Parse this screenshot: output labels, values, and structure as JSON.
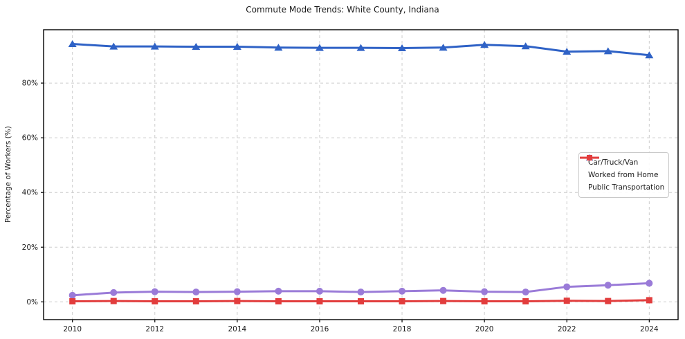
{
  "chart_data": {
    "type": "line",
    "title": "Commute Mode Trends: White County, Indiana",
    "ylabel": "Percentage of Workers (%)",
    "xlabel": "",
    "x": [
      2010,
      2011,
      2012,
      2013,
      2014,
      2015,
      2016,
      2017,
      2018,
      2019,
      2020,
      2021,
      2022,
      2023,
      2024
    ],
    "xticks": [
      2010,
      2012,
      2014,
      2016,
      2018,
      2020,
      2022,
      2024
    ],
    "yticks": [
      0,
      20,
      40,
      60,
      80
    ],
    "ytick_suffix": "%",
    "xlim": [
      2009.3,
      2024.7
    ],
    "ylim": [
      -6.5,
      99.5
    ],
    "grid": true,
    "grid_color": "#cccccc",
    "legend_position": "center-right",
    "series": [
      {
        "name": "Car/Truck/Van",
        "color": "#2f62c6",
        "marker": "triangle",
        "values": [
          94.3,
          93.4,
          93.4,
          93.3,
          93.3,
          93.0,
          92.9,
          92.9,
          92.8,
          93.0,
          94.0,
          93.5,
          91.5,
          91.7,
          90.2
        ]
      },
      {
        "name": "Worked from Home",
        "color": "#9a7bd8",
        "marker": "circle",
        "values": [
          2.4,
          3.4,
          3.7,
          3.6,
          3.7,
          3.9,
          3.9,
          3.6,
          3.9,
          4.2,
          3.7,
          3.6,
          5.5,
          6.1,
          6.8
        ]
      },
      {
        "name": "Public Transportation",
        "color": "#e23d3d",
        "marker": "square",
        "values": [
          0.2,
          0.3,
          0.2,
          0.2,
          0.3,
          0.2,
          0.2,
          0.2,
          0.2,
          0.3,
          0.2,
          0.2,
          0.4,
          0.3,
          0.6
        ]
      }
    ]
  }
}
